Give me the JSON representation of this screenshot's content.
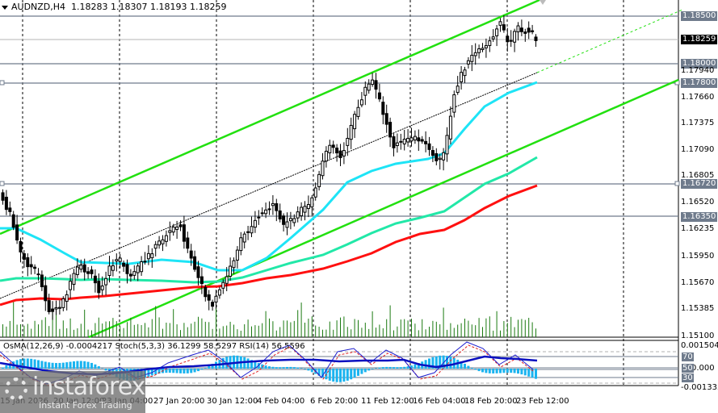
{
  "header": {
    "symbol": "AUDNZD,H4",
    "ohlc": "1.18283 1.18307 1.18193 1.18259"
  },
  "price_axis": {
    "ticks": [
      "1.17940",
      "1.17660",
      "1.17375",
      "1.17090",
      "1.16805",
      "1.16520",
      "1.16235",
      "1.15950",
      "1.15670",
      "1.15385",
      "1.15100"
    ],
    "level_tags": [
      "1.18500",
      "1.18000",
      "1.17800",
      "1.16720",
      "1.16350"
    ],
    "current_price": "1.18259"
  },
  "time_axis": {
    "labels": [
      "15 Jan 2026",
      "20 Jan 12:00",
      "23 Jan 04:00",
      "27 Jan 20:00",
      "30 Jan 12:00",
      "4 Feb 04:00",
      "6 Feb 20:00",
      "11 Feb 12:00",
      "16 Feb 04:00",
      "18 Feb 20:00",
      "23 Feb 12:00"
    ]
  },
  "indicator": {
    "label": "OsMA(12,26,9) -0.0004217  Stoch(5,3,3) 36.1299 58.5297  RSI(14) 56.5596",
    "max": "0.001504",
    "min": "-0.001333",
    "zero": "0.000",
    "levels": [
      "80",
      "70",
      "50",
      "30",
      "20"
    ]
  },
  "watermark": {
    "brand": "instaforex",
    "tagline": "Instant Forex Trading"
  },
  "colors": {
    "up_candle": "#ffffff",
    "down_candle": "#000000",
    "ema_fast": "#1ee4f6",
    "ema_mid": "#22e8a8",
    "ema_slow": "#ff1010",
    "channel": "#22e010",
    "volume": "#1a7a10",
    "osma": "#1ab4f0",
    "stoch_main": "#2020d0",
    "stoch_signal": "#e02020",
    "rsi": "#0a10c0",
    "level_line": "#6f7b8c"
  },
  "chart_data": {
    "type": "candlestick",
    "title": "AUDNZD,H4",
    "ohlc_last": {
      "open": 1.18283,
      "high": 1.18307,
      "low": 1.18193,
      "close": 1.18259
    },
    "ylim": [
      1.151,
      1.1875
    ],
    "x": [
      "15 Jan 2026",
      "20 Jan 12:00",
      "23 Jan 04:00",
      "27 Jan 20:00",
      "30 Jan 12:00",
      "4 Feb 04:00",
      "6 Feb 20:00",
      "11 Feb 12:00",
      "16 Feb 04:00",
      "18 Feb 20:00",
      "23 Feb 12:00"
    ],
    "approx_close_at_labels": [
      1.159,
      1.1565,
      1.1595,
      1.162,
      1.156,
      1.164,
      1.17,
      1.178,
      1.172,
      1.183,
      1.1835
    ],
    "horizontal_levels": [
      1.185,
      1.18,
      1.178,
      1.1672,
      1.1635
    ],
    "moving_averages": [
      {
        "name": "EMA fast (cyan)",
        "end_value": 1.178
      },
      {
        "name": "EMA mid (aqua-green)",
        "end_value": 1.17
      },
      {
        "name": "EMA slow (red)",
        "end_value": 1.1667
      }
    ],
    "ascending_channel": {
      "upper": "green line",
      "lower": "green line",
      "mid": "dashed black/green"
    },
    "indicator_panel": {
      "OsMA": {
        "params": "12,26,9",
        "value": -0.0004217
      },
      "Stoch": {
        "params": "5,3,3",
        "main": 36.1299,
        "signal": 58.5297
      },
      "RSI": {
        "params": "14",
        "value": 56.5596
      },
      "range": [
        -0.001333,
        0.001504
      ],
      "levels": [
        80,
        70,
        50,
        30,
        20
      ]
    }
  }
}
